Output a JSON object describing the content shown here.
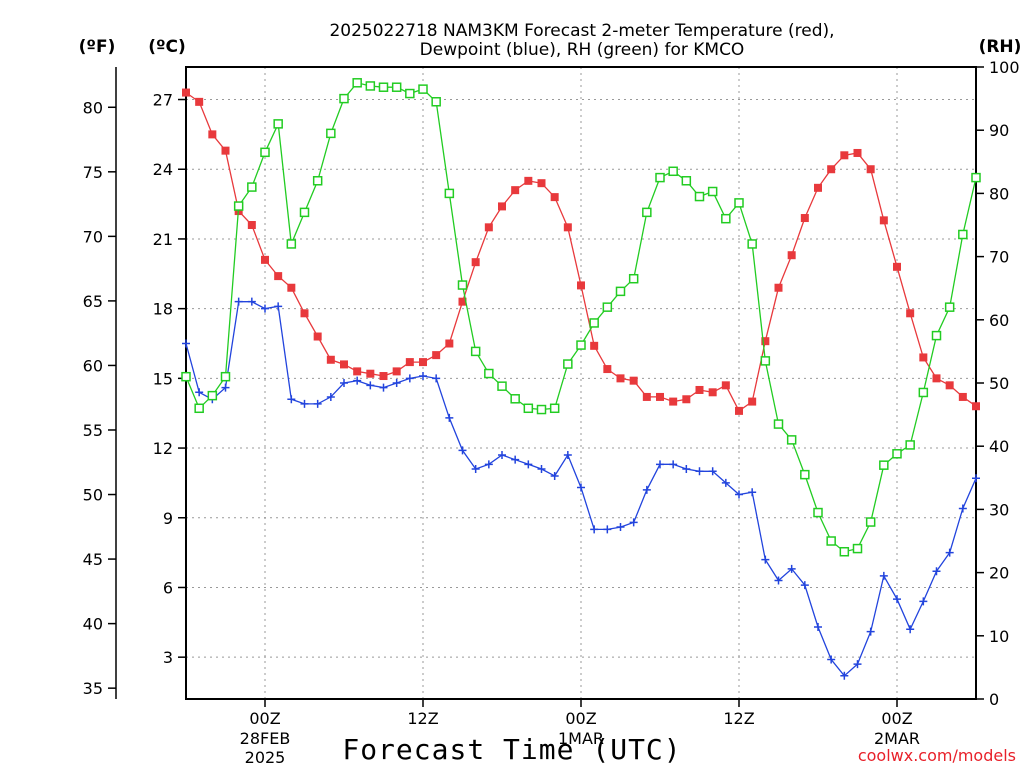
{
  "title": {
    "line1": "2025022718 NAM3KM Forecast 2-meter Temperature (red),",
    "line2": "Dewpoint (blue), RH (green) for KMCO"
  },
  "units": {
    "f": "(ºF)",
    "c": "(ºC)",
    "rh": "(RH)"
  },
  "xlabel": "Forecast Time (UTC)",
  "credit": "coolwx.com/models",
  "colors": {
    "temp": "#e8393c",
    "dew": "#2244dd",
    "rh": "#22cc22",
    "grid": "#999999"
  },
  "chart_data": {
    "type": "line",
    "x_unit": "forecast hour from 2025-02-27 18Z",
    "xlim": [
      0,
      60
    ],
    "x_ticks": [
      {
        "x": 6,
        "label": "00Z",
        "sub": [
          "28FEB",
          "2025"
        ]
      },
      {
        "x": 18,
        "label": "12Z",
        "sub": []
      },
      {
        "x": 30,
        "label": "00Z",
        "sub": [
          "1MAR"
        ]
      },
      {
        "x": 42,
        "label": "12Z",
        "sub": []
      },
      {
        "x": 54,
        "label": "00Z",
        "sub": [
          "2MAR"
        ]
      }
    ],
    "y_left_c": {
      "label": "(ºC)",
      "ticks": [
        3,
        6,
        9,
        12,
        15,
        18,
        21,
        24,
        27
      ]
    },
    "y_left_f": {
      "label": "(ºF)",
      "ticks": [
        35,
        40,
        45,
        50,
        55,
        60,
        65,
        70,
        75,
        80
      ]
    },
    "y_right_rh": {
      "label": "(RH)",
      "ylim": [
        0,
        100
      ],
      "ticks": [
        0,
        10,
        20,
        30,
        40,
        50,
        60,
        70,
        80,
        90,
        100
      ]
    },
    "ylim_c": [
      1.2,
      28.4
    ],
    "grid": true,
    "series": [
      {
        "name": "Temperature",
        "axis": "c",
        "marker": "filled-square",
        "color": "#e8393c",
        "points": [
          [
            0,
            27.3
          ],
          [
            1,
            26.9
          ],
          [
            2,
            25.5
          ],
          [
            3,
            24.8
          ],
          [
            4,
            22.2
          ],
          [
            5,
            21.6
          ],
          [
            6,
            20.1
          ],
          [
            7,
            19.4
          ],
          [
            8,
            18.9
          ],
          [
            9,
            17.8
          ],
          [
            10,
            16.8
          ],
          [
            11,
            15.8
          ],
          [
            12,
            15.6
          ],
          [
            13,
            15.3
          ],
          [
            14,
            15.2
          ],
          [
            15,
            15.1
          ],
          [
            16,
            15.3
          ],
          [
            17,
            15.7
          ],
          [
            18,
            15.7
          ],
          [
            19,
            16.0
          ],
          [
            20,
            16.5
          ],
          [
            21,
            18.3
          ],
          [
            22,
            20.0
          ],
          [
            23,
            21.5
          ],
          [
            24,
            22.4
          ],
          [
            25,
            23.1
          ],
          [
            26,
            23.5
          ],
          [
            27,
            23.4
          ],
          [
            28,
            22.8
          ],
          [
            29,
            21.5
          ],
          [
            30,
            19.0
          ],
          [
            31,
            16.4
          ],
          [
            32,
            15.4
          ],
          [
            33,
            15.0
          ],
          [
            34,
            14.9
          ],
          [
            35,
            14.2
          ],
          [
            36,
            14.2
          ],
          [
            37,
            14.0
          ],
          [
            38,
            14.1
          ],
          [
            39,
            14.5
          ],
          [
            40,
            14.4
          ],
          [
            41,
            14.7
          ],
          [
            42,
            13.6
          ],
          [
            43,
            14.0
          ],
          [
            44,
            16.6
          ],
          [
            45,
            18.9
          ],
          [
            46,
            20.3
          ],
          [
            47,
            21.9
          ],
          [
            48,
            23.2
          ],
          [
            49,
            24.0
          ],
          [
            50,
            24.6
          ],
          [
            51,
            24.7
          ],
          [
            52,
            24.0
          ],
          [
            53,
            21.8
          ],
          [
            54,
            19.8
          ],
          [
            55,
            17.8
          ],
          [
            56,
            15.9
          ],
          [
            57,
            15.0
          ],
          [
            58,
            14.7
          ],
          [
            59,
            14.2
          ],
          [
            60,
            13.8
          ]
        ]
      },
      {
        "name": "Dewpoint",
        "axis": "c",
        "marker": "plus",
        "color": "#2244dd",
        "points": [
          [
            0,
            16.5
          ],
          [
            1,
            14.4
          ],
          [
            2,
            14.1
          ],
          [
            3,
            14.6
          ],
          [
            4,
            18.3
          ],
          [
            5,
            18.3
          ],
          [
            6,
            18.0
          ],
          [
            7,
            18.1
          ],
          [
            8,
            14.1
          ],
          [
            9,
            13.9
          ],
          [
            10,
            13.9
          ],
          [
            11,
            14.2
          ],
          [
            12,
            14.8
          ],
          [
            13,
            14.9
          ],
          [
            14,
            14.7
          ],
          [
            15,
            14.6
          ],
          [
            16,
            14.8
          ],
          [
            17,
            15.0
          ],
          [
            18,
            15.1
          ],
          [
            19,
            15.0
          ],
          [
            20,
            13.3
          ],
          [
            21,
            11.9
          ],
          [
            22,
            11.1
          ],
          [
            23,
            11.3
          ],
          [
            24,
            11.7
          ],
          [
            25,
            11.5
          ],
          [
            26,
            11.3
          ],
          [
            27,
            11.1
          ],
          [
            28,
            10.8
          ],
          [
            29,
            11.7
          ],
          [
            30,
            10.3
          ],
          [
            31,
            8.5
          ],
          [
            32,
            8.5
          ],
          [
            33,
            8.6
          ],
          [
            34,
            8.8
          ],
          [
            35,
            10.2
          ],
          [
            36,
            11.3
          ],
          [
            37,
            11.3
          ],
          [
            38,
            11.1
          ],
          [
            39,
            11.0
          ],
          [
            40,
            11.0
          ],
          [
            41,
            10.5
          ],
          [
            42,
            10.0
          ],
          [
            43,
            10.1
          ],
          [
            44,
            7.2
          ],
          [
            45,
            6.3
          ],
          [
            46,
            6.8
          ],
          [
            47,
            6.1
          ],
          [
            48,
            4.3
          ],
          [
            49,
            2.9
          ],
          [
            50,
            2.2
          ],
          [
            51,
            2.7
          ],
          [
            52,
            4.1
          ],
          [
            53,
            6.5
          ],
          [
            54,
            5.5
          ],
          [
            55,
            4.2
          ],
          [
            56,
            5.4
          ],
          [
            57,
            6.7
          ],
          [
            58,
            7.5
          ],
          [
            59,
            9.4
          ],
          [
            60,
            10.7
          ]
        ]
      },
      {
        "name": "RH",
        "axis": "rh",
        "marker": "open-square",
        "color": "#22cc22",
        "points": [
          [
            0,
            51
          ],
          [
            1,
            46
          ],
          [
            2,
            48
          ],
          [
            3,
            51
          ],
          [
            4,
            78
          ],
          [
            5,
            81
          ],
          [
            6,
            86.5
          ],
          [
            7,
            91
          ],
          [
            8,
            72
          ],
          [
            9,
            77
          ],
          [
            10,
            82
          ],
          [
            11,
            89.5
          ],
          [
            12,
            95
          ],
          [
            13,
            97.5
          ],
          [
            14,
            97
          ],
          [
            15,
            96.8
          ],
          [
            16,
            96.8
          ],
          [
            17,
            95.8
          ],
          [
            18,
            96.5
          ],
          [
            19,
            94.5
          ],
          [
            20,
            80
          ],
          [
            21,
            65.5
          ],
          [
            22,
            55
          ],
          [
            23,
            51.5
          ],
          [
            24,
            49.5
          ],
          [
            25,
            47.5
          ],
          [
            26,
            46
          ],
          [
            27,
            45.8
          ],
          [
            28,
            46
          ],
          [
            29,
            53
          ],
          [
            30,
            56
          ],
          [
            31,
            59.5
          ],
          [
            32,
            62
          ],
          [
            33,
            64.5
          ],
          [
            34,
            66.5
          ],
          [
            35,
            77
          ],
          [
            36,
            82.5
          ],
          [
            37,
            83.5
          ],
          [
            38,
            82
          ],
          [
            39,
            79.5
          ],
          [
            40,
            80.3
          ],
          [
            41,
            76
          ],
          [
            42,
            78.5
          ],
          [
            43,
            72
          ],
          [
            44,
            53.5
          ],
          [
            45,
            43.5
          ],
          [
            46,
            41
          ],
          [
            47,
            35.5
          ],
          [
            48,
            29.5
          ],
          [
            49,
            25
          ],
          [
            50,
            23.3
          ],
          [
            51,
            23.8
          ],
          [
            52,
            28
          ],
          [
            53,
            37
          ],
          [
            54,
            38.8
          ],
          [
            55,
            40.2
          ],
          [
            56,
            48.5
          ],
          [
            57,
            57.5
          ],
          [
            58,
            62
          ],
          [
            59,
            73.5
          ],
          [
            60,
            82.5
          ]
        ]
      }
    ]
  }
}
